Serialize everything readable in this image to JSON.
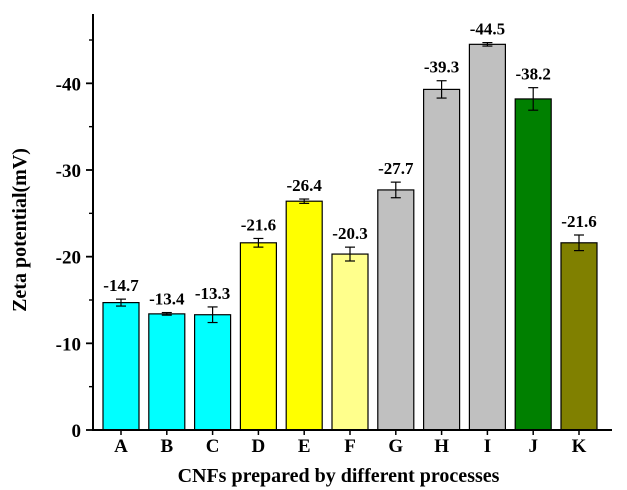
{
  "chart_data": {
    "type": "bar",
    "title": "",
    "xlabel": "CNFs prepared by different processes",
    "ylabel": "Zeta potential(mV)",
    "categories": [
      "A",
      "B",
      "C",
      "D",
      "E",
      "F",
      "G",
      "H",
      "I",
      "J",
      "K"
    ],
    "values": [
      -14.7,
      -13.4,
      -13.3,
      -21.6,
      -26.4,
      -20.3,
      -27.7,
      -39.3,
      -44.5,
      -38.2,
      -21.6
    ],
    "value_labels": [
      "-14.7",
      "-13.4",
      "-13.3",
      "-21.6",
      "-26.4",
      "-20.3",
      "-27.7",
      "-39.3",
      "-44.5",
      "-38.2",
      "-21.6"
    ],
    "errors": [
      0.4,
      0.15,
      0.9,
      0.5,
      0.25,
      0.8,
      0.9,
      1.0,
      0.2,
      1.3,
      0.9
    ],
    "bar_colors": [
      "#00ffff",
      "#00ffff",
      "#00ffff",
      "#ffff00",
      "#ffff00",
      "#ffff8c",
      "#c0c0c0",
      "#c0c0c0",
      "#c0c0c0",
      "#008000",
      "#808000"
    ],
    "ylim": [
      0,
      -48
    ],
    "yticks": [
      0,
      -10,
      -20,
      -30,
      -40
    ],
    "ytick_labels": [
      "0",
      "-10",
      "-20",
      "-30",
      "-40"
    ],
    "y_inverted": true,
    "grid": false,
    "legend": "none"
  }
}
